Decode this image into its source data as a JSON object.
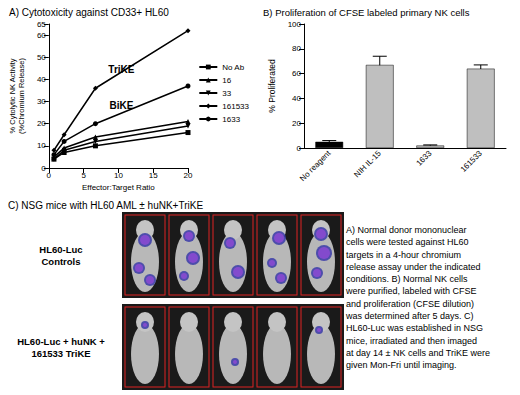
{
  "chart_data": [
    {
      "type": "line",
      "title": "A) Cytotoxicity against CD33+ HL60",
      "x_label": "Effector:Target Ratio",
      "y_label": "% Cytolytic NK Activity\n(%Chromium Release)",
      "x": [
        0.74,
        2.2,
        6.7,
        20
      ],
      "xlim": [
        0,
        20
      ],
      "xticks": [
        0,
        5,
        10,
        15,
        20
      ],
      "ylim": [
        0,
        65
      ],
      "yticks": [
        0,
        10,
        20,
        30,
        40,
        50,
        60
      ],
      "grid": false,
      "legend": "right",
      "series": [
        {
          "name": "No Ab",
          "color": "#000000",
          "marker": "square",
          "values": [
            4,
            7,
            10,
            16
          ]
        },
        {
          "name": "16",
          "color": "#000000",
          "marker": "triangle",
          "values": [
            5,
            9,
            14,
            21
          ]
        },
        {
          "name": "33",
          "color": "#000000",
          "marker": "down_triangle",
          "values": [
            4,
            8,
            12,
            19
          ]
        },
        {
          "name": "161533",
          "color": "#000000",
          "marker": "diamond",
          "values": [
            8,
            15,
            36,
            62
          ]
        },
        {
          "name": "1633",
          "color": "#000000",
          "marker": "circle",
          "values": [
            6,
            12,
            20,
            37
          ]
        }
      ],
      "annotations": [
        {
          "text": "TriKE",
          "series": "161533",
          "at_x": 6.7
        },
        {
          "text": "BiKE",
          "series": "1633",
          "at_x": 6.7
        }
      ]
    },
    {
      "type": "bar",
      "title": "B) Proliferation of CFSE labeled primary NK cells",
      "y_label": "% Proliferated",
      "categories": [
        "No reagent",
        "NIH IL-15",
        "1633",
        "161533"
      ],
      "values": [
        5,
        67,
        2,
        64
      ],
      "errors": [
        1,
        7,
        0.5,
        3
      ],
      "colors": [
        "#000000",
        "#bfbfbf",
        "#bfbfbf",
        "#bfbfbf"
      ],
      "ylim": [
        0,
        100
      ],
      "yticks": [
        0,
        20,
        40,
        60,
        80,
        100
      ],
      "grid": false
    }
  ],
  "panel_c": {
    "title": "C) NSG mice with HL60 AML ± huNK+TriKE",
    "rows": [
      {
        "label": [
          "HL60-Luc",
          "Controls"
        ]
      },
      {
        "label": [
          "HL60-Luc + huNK +",
          "161533 TriKE"
        ]
      }
    ]
  },
  "caption_lines": [
    "A) Normal donor mononuclear",
    "cells were tested against HL60",
    "targets in a 4-hour chromium",
    "release assay under the indicated",
    "conditions. B) Normal NK cells",
    "were purified, labeled with CFSE",
    "and proliferation (CFSE dilution)",
    "was determined after 5 days. C)",
    "HL60-Luc was established in NSG",
    "mice, irradiated and then imaged",
    "at day 14 ± NK cells and TriKE were",
    "given Mon-Fri until imaging."
  ]
}
